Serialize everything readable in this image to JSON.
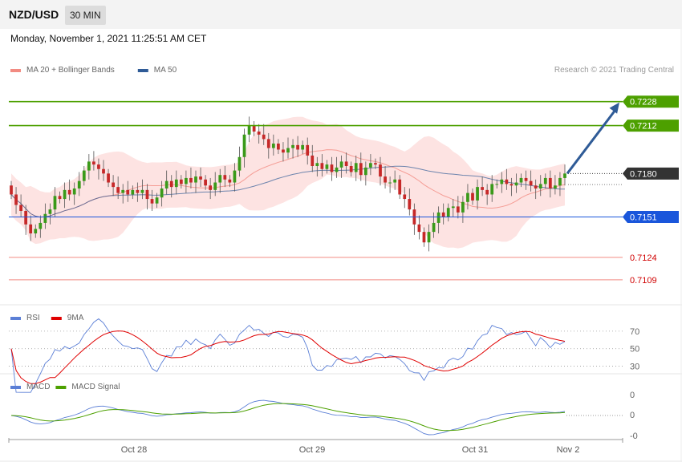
{
  "header": {
    "symbol": "NZD/USD",
    "timeframe": "30 MIN"
  },
  "datetime": "Monday, November 1, 2021 11:25:51 AM CET",
  "credit": "Research © 2021 Trading Central",
  "legend_main": [
    {
      "label": "MA 20 + Bollinger Bands",
      "color": "#f28b82"
    },
    {
      "label": "MA 50",
      "color": "#2f5b97"
    }
  ],
  "legend_rsi": [
    {
      "label": "RSI",
      "color": "#5b7fd6"
    },
    {
      "label": "9MA",
      "color": "#e00000"
    }
  ],
  "legend_macd": [
    {
      "label": "MACD",
      "color": "#5b7fd6"
    },
    {
      "label": "MACD Signal",
      "color": "#4da000"
    }
  ],
  "colors": {
    "up": "#3a9a1a",
    "down": "#c62828",
    "band": "#fde0df",
    "resistance": "#4da000",
    "support_strong": "#1a56db",
    "support": "#f28b82",
    "price": "#333333",
    "arrow": "#2f5b97"
  },
  "chart_data": [
    {
      "type": "candlestick",
      "title": "NZD/USD",
      "timeframe": "30 MIN",
      "ylim": [
        0.7095,
        0.7245
      ],
      "x_ticks": [
        "Oct 28",
        "Oct 29",
        "Oct 31",
        "Nov 2"
      ],
      "current_price": "0.7180",
      "levels": [
        {
          "price": "0.7228",
          "kind": "resistance",
          "style": "tag"
        },
        {
          "price": "0.7212",
          "kind": "resistance",
          "style": "tag"
        },
        {
          "price": "0.7151",
          "kind": "support",
          "style": "tag"
        },
        {
          "price": "0.7124",
          "kind": "support",
          "style": "plain"
        },
        {
          "price": "0.7109",
          "kind": "support",
          "style": "plain"
        }
      ],
      "forecast_target": "0.7228",
      "closes": [
        0.7166,
        0.7159,
        0.7155,
        0.7146,
        0.714,
        0.7143,
        0.7147,
        0.7153,
        0.7156,
        0.7165,
        0.7163,
        0.7169,
        0.7166,
        0.717,
        0.7175,
        0.7182,
        0.7188,
        0.7186,
        0.7183,
        0.718,
        0.7174,
        0.7171,
        0.7167,
        0.7169,
        0.7166,
        0.7169,
        0.7167,
        0.7169,
        0.7163,
        0.716,
        0.7164,
        0.717,
        0.7175,
        0.7171,
        0.7176,
        0.7173,
        0.7177,
        0.7174,
        0.7178,
        0.7176,
        0.7172,
        0.7169,
        0.7174,
        0.7179,
        0.7176,
        0.7174,
        0.7182,
        0.7191,
        0.7206,
        0.7212,
        0.7208,
        0.7206,
        0.7203,
        0.7197,
        0.72,
        0.7196,
        0.7194,
        0.7197,
        0.7199,
        0.7196,
        0.7199,
        0.7192,
        0.7185,
        0.7187,
        0.7183,
        0.7186,
        0.7181,
        0.7184,
        0.7188,
        0.7185,
        0.7181,
        0.7187,
        0.7179,
        0.7184,
        0.7187,
        0.7186,
        0.7178,
        0.7174,
        0.7174,
        0.7176,
        0.7166,
        0.7163,
        0.7156,
        0.7146,
        0.7141,
        0.7134,
        0.7141,
        0.7147,
        0.7154,
        0.7151,
        0.7157,
        0.7158,
        0.7154,
        0.7161,
        0.7167,
        0.7162,
        0.7171,
        0.7169,
        0.7166,
        0.7173,
        0.7173,
        0.7176,
        0.7173,
        0.7172,
        0.7174,
        0.7177,
        0.7175,
        0.7172,
        0.717,
        0.7173,
        0.7177,
        0.717,
        0.7172,
        0.7177,
        0.718
      ],
      "rsi": {
        "ylim": [
          25,
          80
        ],
        "ticks": [
          "70",
          "50",
          "30"
        ],
        "levels": [
          70,
          50,
          30
        ]
      },
      "macd": {
        "ticks": [
          "0",
          "0",
          "-0"
        ]
      }
    }
  ]
}
